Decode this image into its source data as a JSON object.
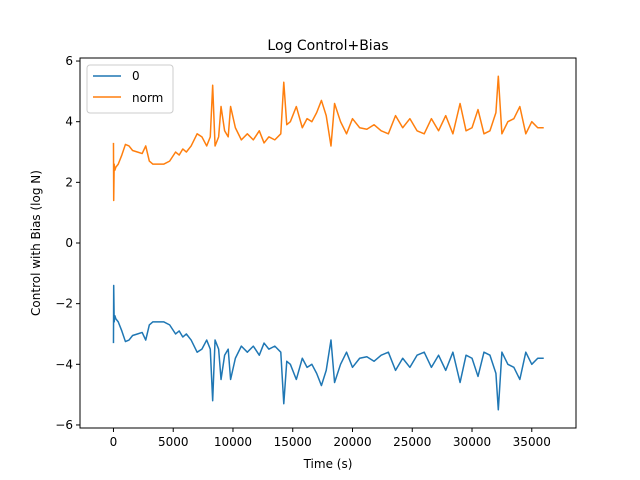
{
  "chart_data": {
    "type": "line",
    "title": "Log Control+Bias",
    "xlabel": "Time (s)",
    "ylabel": "Control with Bias (log N)",
    "xlim": [
      -2800,
      38700
    ],
    "ylim": [
      -6.1,
      6.1
    ],
    "xticks": [
      0,
      5000,
      10000,
      15000,
      20000,
      25000,
      30000,
      35000
    ],
    "xtick_labels": [
      "0",
      "5000",
      "10000",
      "15000",
      "20000",
      "25000",
      "30000",
      "35000"
    ],
    "yticks": [
      -6,
      -4,
      -2,
      0,
      2,
      4,
      6
    ],
    "ytick_labels": [
      "−6",
      "−4",
      "−2",
      "0",
      "2",
      "4",
      "6"
    ],
    "grid": false,
    "legend": {
      "position": "upper-left",
      "entries": [
        "0",
        "norm"
      ]
    },
    "series": [
      {
        "name": "0",
        "color": "#1f77b4",
        "x": [
          0,
          20,
          60,
          120,
          200,
          400,
          700,
          1000,
          1300,
          1600,
          2000,
          2400,
          2700,
          3000,
          3300,
          3700,
          4200,
          4700,
          5200,
          5500,
          5800,
          6100,
          6500,
          7000,
          7400,
          7800,
          8100,
          8300,
          8500,
          8800,
          9000,
          9300,
          9600,
          9800,
          10200,
          10700,
          11200,
          11700,
          12200,
          12600,
          13000,
          13500,
          14000,
          14250,
          14500,
          14800,
          15300,
          15800,
          16200,
          16600,
          17000,
          17400,
          17800,
          18200,
          18500,
          19000,
          19500,
          20000,
          20600,
          21200,
          21800,
          22400,
          23000,
          23600,
          24200,
          24800,
          25400,
          26000,
          26600,
          27200,
          27800,
          28400,
          29000,
          29500,
          30000,
          30500,
          31000,
          31500,
          32000,
          32200,
          32500,
          33000,
          33500,
          34000,
          34500,
          35000,
          35500,
          36000
        ],
        "y": [
          -3.3,
          -1.4,
          -2.6,
          -2.4,
          -2.5,
          -2.6,
          -2.9,
          -3.25,
          -3.2,
          -3.05,
          -3.0,
          -2.95,
          -3.2,
          -2.7,
          -2.6,
          -2.6,
          -2.6,
          -2.7,
          -3.0,
          -2.9,
          -3.1,
          -3.0,
          -3.2,
          -3.6,
          -3.5,
          -3.2,
          -3.5,
          -5.2,
          -3.2,
          -3.5,
          -4.5,
          -3.7,
          -3.5,
          -4.5,
          -3.8,
          -3.4,
          -3.6,
          -3.4,
          -3.7,
          -3.3,
          -3.5,
          -3.4,
          -3.6,
          -5.3,
          -3.9,
          -4.0,
          -4.5,
          -3.8,
          -4.1,
          -4.0,
          -4.3,
          -4.7,
          -4.2,
          -3.2,
          -4.6,
          -4.0,
          -3.6,
          -4.1,
          -3.8,
          -3.75,
          -3.9,
          -3.7,
          -3.6,
          -4.2,
          -3.8,
          -4.1,
          -3.7,
          -3.6,
          -4.1,
          -3.7,
          -4.2,
          -3.6,
          -4.6,
          -3.7,
          -3.8,
          -4.4,
          -3.6,
          -3.7,
          -4.3,
          -5.5,
          -3.6,
          -4.0,
          -4.1,
          -4.5,
          -3.6,
          -4.0,
          -3.8,
          -3.8
        ]
      },
      {
        "name": "norm",
        "color": "#ff7f0e",
        "x": [
          0,
          20,
          60,
          120,
          200,
          400,
          700,
          1000,
          1300,
          1600,
          2000,
          2400,
          2700,
          3000,
          3300,
          3700,
          4200,
          4700,
          5200,
          5500,
          5800,
          6100,
          6500,
          7000,
          7400,
          7800,
          8100,
          8300,
          8500,
          8800,
          9000,
          9300,
          9600,
          9800,
          10200,
          10700,
          11200,
          11700,
          12200,
          12600,
          13000,
          13500,
          14000,
          14250,
          14500,
          14800,
          15300,
          15800,
          16200,
          16600,
          17000,
          17400,
          17800,
          18200,
          18500,
          19000,
          19500,
          20000,
          20600,
          21200,
          21800,
          22400,
          23000,
          23600,
          24200,
          24800,
          25400,
          26000,
          26600,
          27200,
          27800,
          28400,
          29000,
          29500,
          30000,
          30500,
          31000,
          31500,
          32000,
          32200,
          32500,
          33000,
          33500,
          34000,
          34500,
          35000,
          35500,
          36000
        ],
        "y": [
          3.3,
          1.4,
          2.6,
          2.4,
          2.5,
          2.6,
          2.9,
          3.25,
          3.2,
          3.05,
          3.0,
          2.95,
          3.2,
          2.7,
          2.6,
          2.6,
          2.6,
          2.7,
          3.0,
          2.9,
          3.1,
          3.0,
          3.2,
          3.6,
          3.5,
          3.2,
          3.5,
          5.2,
          3.2,
          3.5,
          4.5,
          3.7,
          3.5,
          4.5,
          3.8,
          3.4,
          3.6,
          3.4,
          3.7,
          3.3,
          3.5,
          3.4,
          3.6,
          5.3,
          3.9,
          4.0,
          4.5,
          3.8,
          4.1,
          4.0,
          4.3,
          4.7,
          4.2,
          3.2,
          4.6,
          4.0,
          3.6,
          4.1,
          3.8,
          3.75,
          3.9,
          3.7,
          3.6,
          4.2,
          3.8,
          4.1,
          3.7,
          3.6,
          4.1,
          3.7,
          4.2,
          3.6,
          4.6,
          3.7,
          3.8,
          4.4,
          3.6,
          3.7,
          4.3,
          5.5,
          3.6,
          4.0,
          4.1,
          4.5,
          3.6,
          4.0,
          3.8,
          3.8
        ]
      }
    ]
  }
}
